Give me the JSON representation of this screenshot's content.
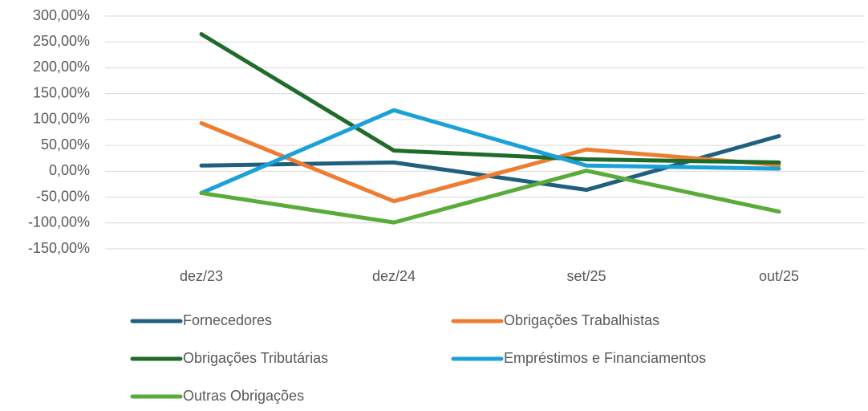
{
  "chart_data": {
    "type": "line",
    "categories": [
      "dez/23",
      "dez/24",
      "set/25",
      "out/25"
    ],
    "series": [
      {
        "name": "Fornecedores",
        "color": "#215f7e",
        "values": [
          11,
          17,
          -36,
          68
        ]
      },
      {
        "name": "Obrigações Trabalhistas",
        "color": "#ed7d31",
        "values": [
          93,
          -58,
          42,
          12
        ]
      },
      {
        "name": "Obrigações Tributárias",
        "color": "#1e6b2a",
        "values": [
          265,
          40,
          23,
          17
        ]
      },
      {
        "name": "Empréstimos e Financiamentos",
        "color": "#1ba1d8",
        "values": [
          -42,
          118,
          11,
          5
        ]
      },
      {
        "name": "Outras Obrigações",
        "color": "#5aab3a",
        "values": [
          -42,
          -99,
          1,
          -78
        ]
      }
    ],
    "ylim": [
      -150,
      300
    ],
    "yticks": [
      {
        "value": -150,
        "label": "-150,00%"
      },
      {
        "value": -100,
        "label": "-100,00%"
      },
      {
        "value": -50,
        "label": "-50,00%"
      },
      {
        "value": 0,
        "label": "0,00%"
      },
      {
        "value": 50,
        "label": "50,00%"
      },
      {
        "value": 100,
        "label": "100,00%"
      },
      {
        "value": 150,
        "label": "150,00%"
      },
      {
        "value": 200,
        "label": "200,00%"
      },
      {
        "value": 250,
        "label": "250,00%"
      },
      {
        "value": 300,
        "label": "300,00%"
      }
    ],
    "grid": true,
    "legend": "bottom"
  }
}
